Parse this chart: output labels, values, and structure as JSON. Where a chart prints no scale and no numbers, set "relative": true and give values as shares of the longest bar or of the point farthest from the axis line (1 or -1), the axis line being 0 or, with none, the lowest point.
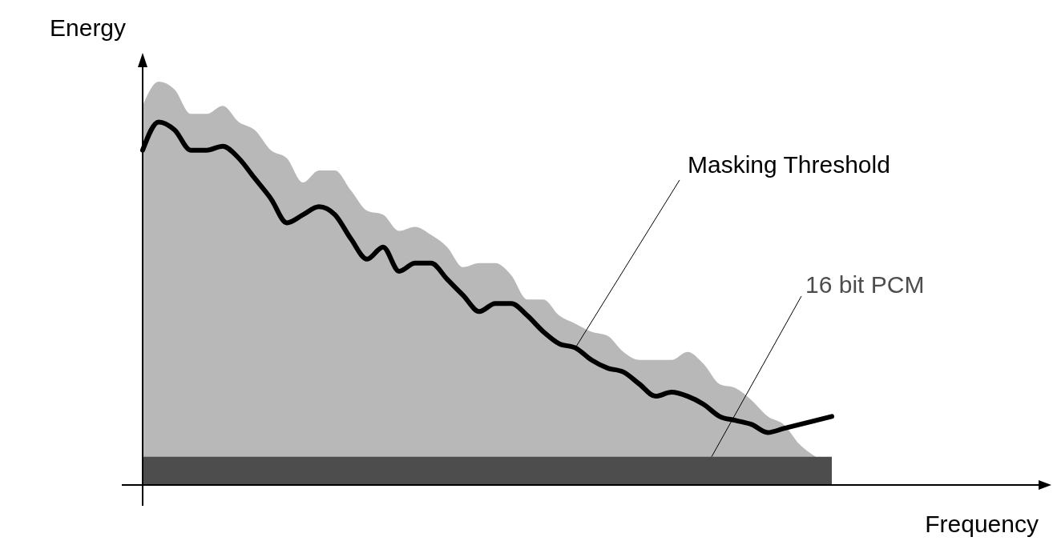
{
  "chart_data": {
    "type": "area",
    "relative": true,
    "xlabel": "Frequency",
    "ylabel": "Energy",
    "tick_labels": false,
    "grid": false,
    "categories": [
      null,
      null,
      null,
      null,
      null,
      null,
      null,
      null,
      null,
      null,
      null,
      null,
      null,
      null,
      null,
      null,
      null,
      null,
      null,
      null,
      null,
      null,
      null,
      null,
      null,
      null,
      null,
      null,
      null,
      null,
      null,
      null,
      null,
      null,
      null,
      null,
      null,
      null,
      null,
      null,
      null,
      null,
      null,
      null
    ],
    "series": [
      {
        "color": "#b8b8b8",
        "values": [
          0.94,
          1.0,
          0.98,
          0.92,
          0.92,
          0.94,
          0.9,
          0.88,
          0.83,
          0.81,
          0.75,
          0.78,
          0.78,
          0.73,
          0.68,
          0.67,
          0.63,
          0.64,
          0.62,
          0.59,
          0.54,
          0.55,
          0.55,
          0.52,
          0.46,
          0.46,
          0.42,
          0.4,
          0.38,
          0.37,
          0.33,
          0.31,
          0.31,
          0.31,
          0.33,
          0.3,
          0.25,
          0.24,
          0.21,
          0.17,
          0.15,
          0.1,
          0.07,
          null
        ]
      },
      {
        "name": "16 bit PCM",
        "color": "#4d4d4d",
        "values": [
          0.07,
          0.07,
          0.07,
          0.07,
          0.07,
          0.07,
          0.07,
          0.07,
          0.07,
          0.07,
          0.07,
          0.07,
          0.07,
          0.07,
          0.07,
          0.07,
          0.07,
          0.07,
          0.07,
          0.07,
          0.07,
          0.07,
          0.07,
          0.07,
          0.07,
          0.07,
          0.07,
          0.07,
          0.07,
          0.07,
          0.07,
          0.07,
          0.07,
          0.07,
          0.07,
          0.07,
          0.07,
          0.07,
          0.07,
          0.07,
          0.07,
          0.07,
          0.07,
          0.07
        ]
      },
      {
        "type": "line",
        "name": "Masking Threshold",
        "color": "#000000",
        "values": [
          0.83,
          0.9,
          0.88,
          0.83,
          0.83,
          0.84,
          0.81,
          0.76,
          0.71,
          0.65,
          0.67,
          0.69,
          0.67,
          0.61,
          0.56,
          0.59,
          0.53,
          0.55,
          0.55,
          0.51,
          0.47,
          0.43,
          0.45,
          0.45,
          0.42,
          0.38,
          0.35,
          0.34,
          0.31,
          0.29,
          0.28,
          0.25,
          0.22,
          0.23,
          0.22,
          0.2,
          0.17,
          0.16,
          0.15,
          0.13,
          0.14,
          0.15,
          0.16,
          0.17
        ]
      }
    ]
  }
}
